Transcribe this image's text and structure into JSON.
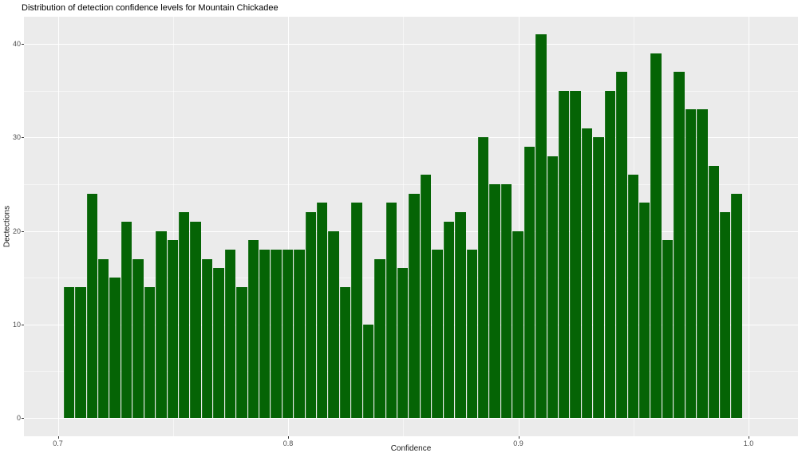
{
  "chart_data": {
    "type": "bar",
    "subtype": "histogram",
    "title": "Distribution of detection confidence levels for Mountain Chickadee",
    "xlabel": "Confidence",
    "ylabel": "Dectections",
    "bin_width": 0.005,
    "bin_centers": [
      0.705,
      0.71,
      0.715,
      0.72,
      0.725,
      0.73,
      0.735,
      0.74,
      0.745,
      0.75,
      0.755,
      0.76,
      0.765,
      0.77,
      0.775,
      0.78,
      0.785,
      0.79,
      0.795,
      0.8,
      0.805,
      0.81,
      0.815,
      0.82,
      0.825,
      0.83,
      0.835,
      0.84,
      0.845,
      0.85,
      0.855,
      0.86,
      0.865,
      0.87,
      0.875,
      0.88,
      0.885,
      0.89,
      0.895,
      0.9,
      0.905,
      0.91,
      0.915,
      0.92,
      0.925,
      0.93,
      0.935,
      0.94,
      0.945,
      0.95,
      0.955,
      0.96,
      0.965,
      0.97,
      0.975,
      0.98,
      0.985,
      0.99,
      0.995
    ],
    "counts": [
      14,
      14,
      24,
      17,
      15,
      21,
      17,
      14,
      20,
      19,
      22,
      21,
      17,
      16,
      18,
      14,
      19,
      18,
      18,
      18,
      18,
      22,
      23,
      20,
      14,
      23,
      10,
      17,
      23,
      16,
      24,
      26,
      18,
      21,
      22,
      18,
      30,
      25,
      25,
      20,
      29,
      41,
      28,
      35,
      35,
      31,
      30,
      35,
      37,
      26,
      23,
      39,
      19,
      37,
      33,
      33,
      27,
      22,
      24
    ],
    "x_tick_labels": [
      "0.7",
      "0.8",
      "0.9",
      "1.0"
    ],
    "x_tick_values": [
      0.7,
      0.8,
      0.9,
      1.0
    ],
    "x_minor_values": [
      0.75,
      0.85,
      0.95
    ],
    "y_tick_labels": [
      "0",
      "10",
      "20",
      "30",
      "40"
    ],
    "y_tick_values": [
      0,
      10,
      20,
      30,
      40
    ],
    "y_minor_values": [
      5,
      15,
      25,
      35
    ],
    "xlim": [
      0.685,
      1.022
    ],
    "ylim": [
      0,
      41
    ],
    "grid": true,
    "legend": false,
    "colors": {
      "bar_fill": "#056405",
      "panel_bg": "#EBEBEB",
      "grid_major": "#FFFFFF",
      "grid_minor": "#F7F7F7",
      "axis_text": "#4D4D4D",
      "title_text": "#000000",
      "tick_mark": "#333333"
    }
  }
}
